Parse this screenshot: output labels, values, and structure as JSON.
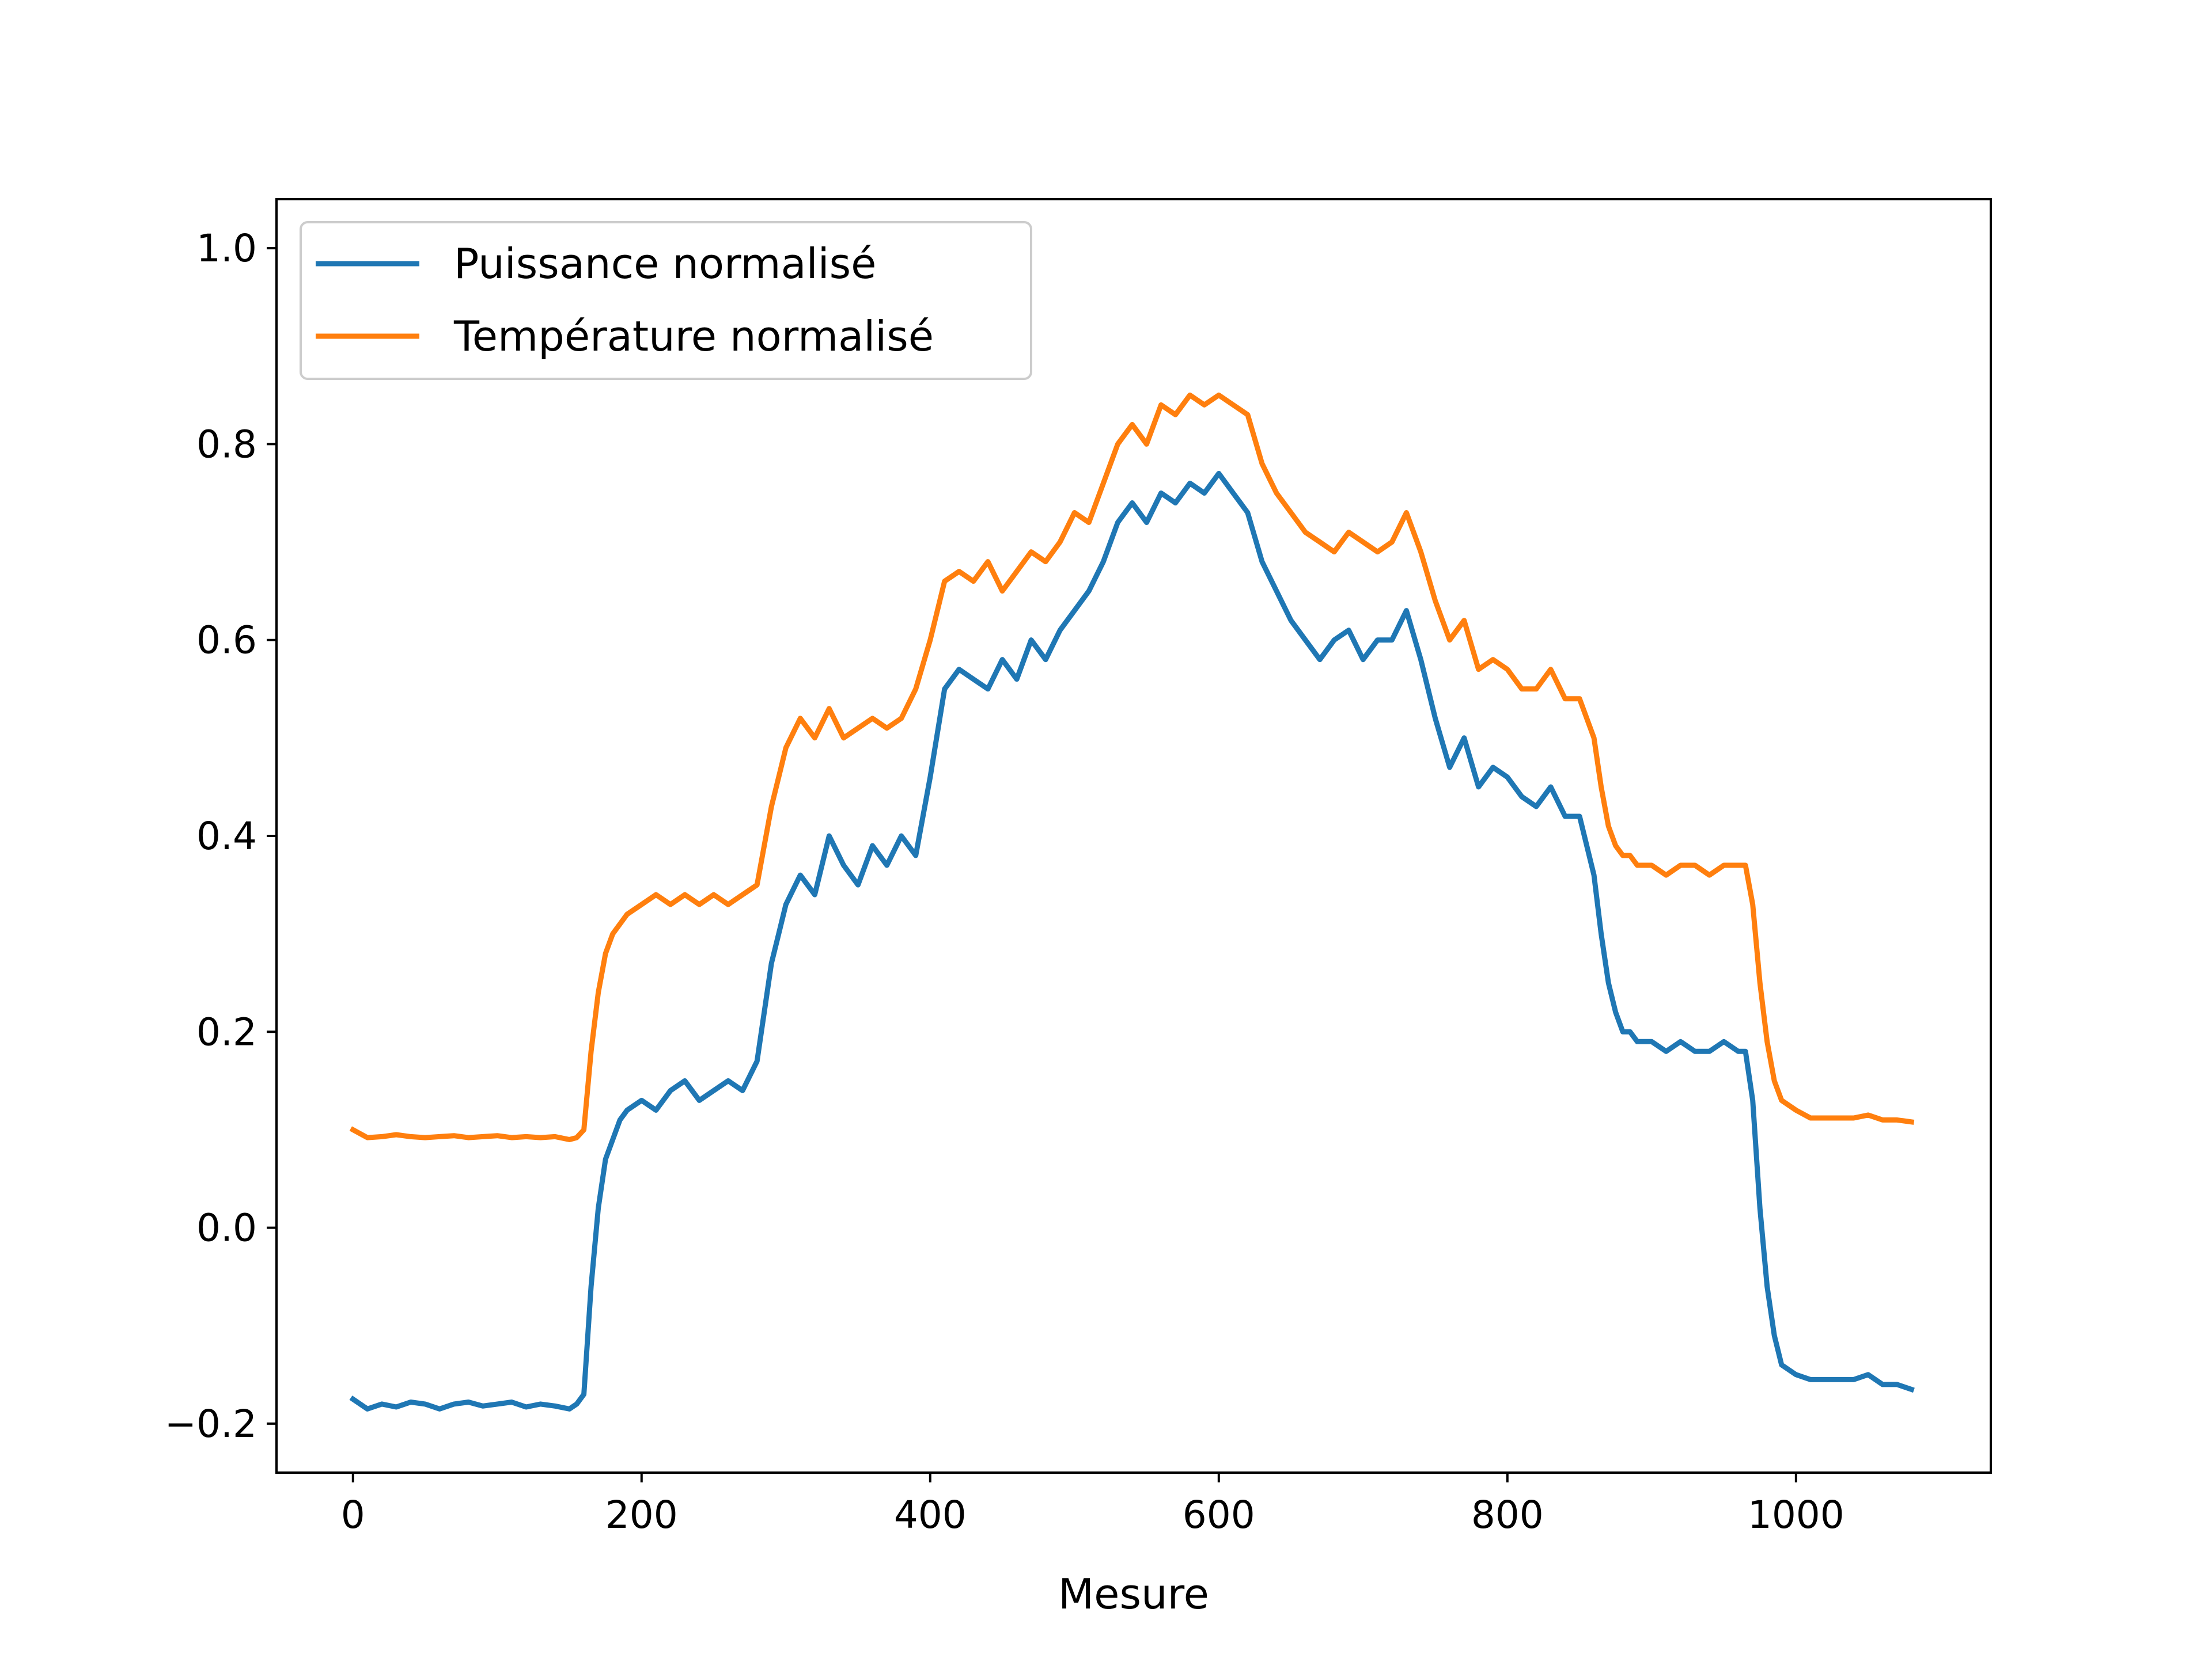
{
  "chart_data": {
    "type": "line",
    "title": "",
    "xlabel": "Mesure",
    "ylabel": "",
    "xlim": [
      -53,
      1135
    ],
    "ylim": [
      -0.25,
      1.05
    ],
    "xticks": [
      0,
      200,
      400,
      600,
      800,
      1000
    ],
    "xtick_labels": [
      "0",
      "200",
      "400",
      "600",
      "800",
      "1000"
    ],
    "yticks": [
      -0.2,
      0.0,
      0.2,
      0.4,
      0.6,
      0.8,
      1.0
    ],
    "ytick_labels": [
      "−0.2",
      "0.0",
      "0.2",
      "0.4",
      "0.6",
      "0.8",
      "1.0"
    ],
    "grid": false,
    "legend": {
      "position": "upper-left"
    },
    "series": [
      {
        "name": "Puissance normalisé",
        "color": "#1f77b4",
        "x": [
          0,
          10,
          20,
          30,
          40,
          50,
          60,
          70,
          80,
          90,
          100,
          110,
          120,
          130,
          140,
          150,
          155,
          160,
          165,
          170,
          175,
          180,
          185,
          190,
          200,
          210,
          220,
          230,
          240,
          250,
          260,
          270,
          280,
          285,
          290,
          295,
          300,
          310,
          320,
          330,
          340,
          350,
          360,
          370,
          380,
          390,
          400,
          410,
          420,
          430,
          440,
          450,
          460,
          470,
          480,
          490,
          500,
          510,
          520,
          530,
          540,
          550,
          560,
          570,
          580,
          590,
          600,
          610,
          620,
          630,
          640,
          650,
          660,
          670,
          680,
          690,
          700,
          710,
          720,
          730,
          740,
          750,
          760,
          770,
          780,
          790,
          800,
          810,
          820,
          830,
          840,
          850,
          860,
          865,
          870,
          875,
          880,
          885,
          890,
          900,
          910,
          920,
          930,
          940,
          950,
          960,
          965,
          970,
          975,
          980,
          985,
          990,
          1000,
          1010,
          1020,
          1030,
          1040,
          1050,
          1060,
          1070,
          1080
        ],
        "y": [
          -0.175,
          -0.185,
          -0.18,
          -0.183,
          -0.178,
          -0.18,
          -0.185,
          -0.18,
          -0.178,
          -0.182,
          -0.18,
          -0.178,
          -0.183,
          -0.18,
          -0.182,
          -0.185,
          -0.18,
          -0.17,
          -0.06,
          0.02,
          0.07,
          0.09,
          0.11,
          0.12,
          0.13,
          0.12,
          0.14,
          0.15,
          0.13,
          0.14,
          0.15,
          0.14,
          0.17,
          0.22,
          0.27,
          0.3,
          0.33,
          0.36,
          0.34,
          0.4,
          0.37,
          0.35,
          0.39,
          0.37,
          0.4,
          0.38,
          0.46,
          0.55,
          0.57,
          0.56,
          0.55,
          0.58,
          0.56,
          0.6,
          0.58,
          0.61,
          0.63,
          0.65,
          0.68,
          0.72,
          0.74,
          0.72,
          0.75,
          0.74,
          0.76,
          0.75,
          0.77,
          0.75,
          0.73,
          0.68,
          0.65,
          0.62,
          0.6,
          0.58,
          0.6,
          0.61,
          0.58,
          0.6,
          0.6,
          0.63,
          0.58,
          0.52,
          0.47,
          0.5,
          0.45,
          0.47,
          0.46,
          0.44,
          0.43,
          0.45,
          0.42,
          0.42,
          0.36,
          0.3,
          0.25,
          0.22,
          0.2,
          0.2,
          0.19,
          0.19,
          0.18,
          0.19,
          0.18,
          0.18,
          0.19,
          0.18,
          0.18,
          0.13,
          0.02,
          -0.06,
          -0.11,
          -0.14,
          -0.15,
          -0.155,
          -0.155,
          -0.155,
          -0.155,
          -0.15,
          -0.16,
          -0.16,
          -0.165
        ]
      },
      {
        "name": "Température normalisé",
        "color": "#ff7f0e",
        "x": [
          0,
          10,
          20,
          30,
          40,
          50,
          60,
          70,
          80,
          90,
          100,
          110,
          120,
          130,
          140,
          150,
          155,
          160,
          165,
          170,
          175,
          180,
          185,
          190,
          200,
          210,
          220,
          230,
          240,
          250,
          260,
          270,
          280,
          285,
          290,
          295,
          300,
          310,
          320,
          330,
          340,
          350,
          360,
          370,
          380,
          390,
          400,
          410,
          420,
          430,
          440,
          450,
          460,
          470,
          480,
          490,
          500,
          510,
          520,
          530,
          540,
          550,
          560,
          570,
          580,
          590,
          600,
          610,
          620,
          630,
          640,
          650,
          660,
          670,
          680,
          690,
          700,
          710,
          720,
          730,
          740,
          750,
          760,
          770,
          780,
          790,
          800,
          810,
          820,
          830,
          840,
          850,
          860,
          865,
          870,
          875,
          880,
          885,
          890,
          900,
          910,
          920,
          930,
          940,
          950,
          960,
          965,
          970,
          975,
          980,
          985,
          990,
          1000,
          1010,
          1020,
          1030,
          1040,
          1050,
          1060,
          1070,
          1080
        ],
        "y": [
          0.1,
          0.092,
          0.093,
          0.095,
          0.093,
          0.092,
          0.093,
          0.094,
          0.092,
          0.093,
          0.094,
          0.092,
          0.093,
          0.092,
          0.093,
          0.09,
          0.092,
          0.1,
          0.18,
          0.24,
          0.28,
          0.3,
          0.31,
          0.32,
          0.33,
          0.34,
          0.33,
          0.34,
          0.33,
          0.34,
          0.33,
          0.34,
          0.35,
          0.39,
          0.43,
          0.46,
          0.49,
          0.52,
          0.5,
          0.53,
          0.5,
          0.51,
          0.52,
          0.51,
          0.52,
          0.55,
          0.6,
          0.66,
          0.67,
          0.66,
          0.68,
          0.65,
          0.67,
          0.69,
          0.68,
          0.7,
          0.73,
          0.72,
          0.76,
          0.8,
          0.82,
          0.8,
          0.84,
          0.83,
          0.85,
          0.84,
          0.85,
          0.84,
          0.83,
          0.78,
          0.75,
          0.73,
          0.71,
          0.7,
          0.69,
          0.71,
          0.7,
          0.69,
          0.7,
          0.73,
          0.69,
          0.64,
          0.6,
          0.62,
          0.57,
          0.58,
          0.57,
          0.55,
          0.55,
          0.57,
          0.54,
          0.54,
          0.5,
          0.45,
          0.41,
          0.39,
          0.38,
          0.38,
          0.37,
          0.37,
          0.36,
          0.37,
          0.37,
          0.36,
          0.37,
          0.37,
          0.37,
          0.33,
          0.25,
          0.19,
          0.15,
          0.13,
          0.12,
          0.112,
          0.112,
          0.112,
          0.112,
          0.115,
          0.11,
          0.11,
          0.108
        ]
      }
    ]
  }
}
